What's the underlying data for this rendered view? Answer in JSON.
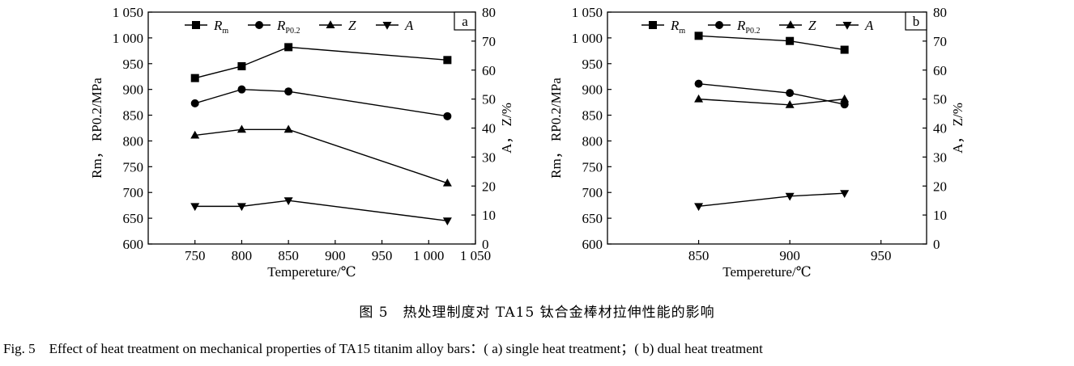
{
  "caption": {
    "cn": "图 5　热处理制度对 TA15 钛合金棒材拉伸性能的影响",
    "en": "Fig. 5　Effect of heat treatment on mechanical properties of TA15 titanim alloy bars：( a) single heat treatment；( b) dual heat treatment"
  },
  "chart_data": [
    {
      "panel_label": "a",
      "type": "line",
      "xlabel": "Tempereture/℃",
      "ylabel_left": "Rm， RP0.2/MPa",
      "ylabel_right": "A， Z/%",
      "xlim": [
        700,
        1050
      ],
      "ylim_left": [
        600,
        1050
      ],
      "ylim_right": [
        0,
        80
      ],
      "x_ticks": [
        750,
        800,
        850,
        900,
        950,
        1000,
        1050
      ],
      "x_tick_labels": [
        "750",
        "800",
        "850",
        "900",
        "950",
        "1 000",
        "1 050"
      ],
      "y_left_ticks": [
        600,
        650,
        700,
        750,
        800,
        850,
        900,
        950,
        1000,
        1050
      ],
      "y_left_tick_labels": [
        "600",
        "650",
        "700",
        "750",
        "800",
        "850",
        "900",
        "950",
        "1 000",
        "1 050"
      ],
      "y_right_ticks": [
        0,
        10,
        20,
        30,
        40,
        50,
        60,
        70,
        80
      ],
      "y_right_tick_labels": [
        "0",
        "10",
        "20",
        "30",
        "40",
        "50",
        "60",
        "70",
        "80"
      ],
      "legend_position": "top",
      "series": [
        {
          "name": "Rm",
          "marker": "square",
          "axis": "left",
          "x": [
            750,
            800,
            850,
            1020
          ],
          "values": [
            922,
            945,
            982,
            957
          ]
        },
        {
          "name": "RP0.2",
          "marker": "circle",
          "axis": "left",
          "x": [
            750,
            800,
            850,
            1020
          ],
          "values": [
            873,
            900,
            896,
            848
          ]
        },
        {
          "name": "Z",
          "marker": "triangle-up",
          "axis": "right",
          "x": [
            750,
            800,
            850,
            1020
          ],
          "values": [
            37.5,
            39.5,
            39.5,
            21
          ]
        },
        {
          "name": "A",
          "marker": "triangle-down",
          "axis": "right",
          "x": [
            750,
            800,
            850,
            1020
          ],
          "values": [
            13,
            13,
            15,
            8
          ]
        }
      ]
    },
    {
      "panel_label": "b",
      "type": "line",
      "xlabel": "Tempereture/℃",
      "ylabel_left": "Rm， RP0.2/MPa",
      "ylabel_right": "A， Z/%",
      "xlim": [
        800,
        975
      ],
      "ylim_left": [
        600,
        1050
      ],
      "ylim_right": [
        0,
        80
      ],
      "x_ticks": [
        850,
        900,
        950
      ],
      "x_tick_labels": [
        "850",
        "900",
        "950"
      ],
      "y_left_ticks": [
        600,
        650,
        700,
        750,
        800,
        850,
        900,
        950,
        1000,
        1050
      ],
      "y_left_tick_labels": [
        "600",
        "650",
        "700",
        "750",
        "800",
        "850",
        "900",
        "950",
        "1 000",
        "1 050"
      ],
      "y_right_ticks": [
        0,
        10,
        20,
        30,
        40,
        50,
        60,
        70,
        80
      ],
      "y_right_tick_labels": [
        "0",
        "10",
        "20",
        "30",
        "40",
        "50",
        "60",
        "70",
        "80"
      ],
      "legend_position": "top",
      "series": [
        {
          "name": "Rm",
          "marker": "square",
          "axis": "left",
          "x": [
            850,
            900,
            930
          ],
          "values": [
            1004,
            994,
            977
          ]
        },
        {
          "name": "RP0.2",
          "marker": "circle",
          "axis": "left",
          "x": [
            850,
            900,
            930
          ],
          "values": [
            911,
            893,
            871
          ]
        },
        {
          "name": "Z",
          "marker": "triangle-up",
          "axis": "right",
          "x": [
            850,
            900,
            930
          ],
          "values": [
            50,
            48,
            50
          ]
        },
        {
          "name": "A",
          "marker": "triangle-down",
          "axis": "right",
          "x": [
            850,
            900,
            930
          ],
          "values": [
            13,
            16.5,
            17.5
          ]
        }
      ]
    }
  ]
}
